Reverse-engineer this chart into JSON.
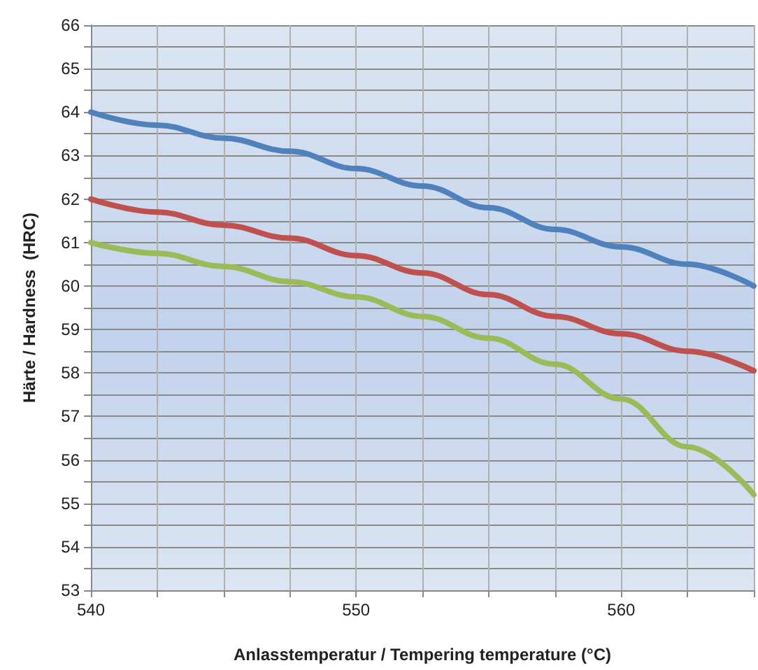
{
  "chart_data": {
    "type": "line",
    "xlabel": "Anlasstemperatur / Tempering temperature (°C)",
    "ylabel": "Härte / Hardness  (HRC)",
    "x": [
      540,
      542.5,
      545,
      547.5,
      550,
      552.5,
      555,
      557.5,
      560,
      562.5,
      565
    ],
    "series": [
      {
        "color": "#4f81bd",
        "values": [
          64,
          63.7,
          63.4,
          63.1,
          62.7,
          62.3,
          61.8,
          61.3,
          60.9,
          60.5,
          60.0
        ]
      },
      {
        "color": "#c0504d",
        "values": [
          62,
          61.7,
          61.4,
          61.1,
          60.7,
          60.3,
          59.8,
          59.3,
          58.9,
          58.5,
          58.05
        ]
      },
      {
        "color": "#9bbb59",
        "values": [
          61,
          60.75,
          60.45,
          60.1,
          59.75,
          59.3,
          58.8,
          58.2,
          57.4,
          56.3,
          55.2
        ]
      }
    ],
    "xlim": [
      540,
      565
    ],
    "xticks": [
      540,
      {
        "value": 542.5,
        "label": null
      },
      {
        "value": 545,
        "label": null
      },
      {
        "value": 547.5,
        "label": null
      },
      550,
      {
        "value": 552.5,
        "label": null
      },
      {
        "value": 555,
        "label": null
      },
      {
        "value": 557.5,
        "label": null
      },
      560,
      {
        "value": 562.5,
        "label": null
      },
      {
        "value": 565,
        "label": null
      }
    ],
    "ylim": [
      53,
      66
    ],
    "yticks": [
      53,
      {
        "value": 53.5,
        "label": null
      },
      54,
      {
        "value": 54.5,
        "label": null
      },
      55,
      {
        "value": 55.5,
        "label": null
      },
      56,
      {
        "value": 56.5,
        "label": null
      },
      57,
      {
        "value": 57.5,
        "label": null
      },
      58,
      {
        "value": 58.5,
        "label": null
      },
      59,
      {
        "value": 59.5,
        "label": null
      },
      60,
      {
        "value": 60.5,
        "label": null
      },
      61,
      {
        "value": 61.5,
        "label": null
      },
      62,
      {
        "value": 62.5,
        "label": null
      },
      63,
      {
        "value": 63.5,
        "label": null
      },
      64,
      {
        "value": 64.5,
        "label": null
      },
      65,
      {
        "value": 65.5,
        "label": null
      },
      66
    ],
    "grid": true,
    "marker": "none",
    "line_style": "solid"
  }
}
